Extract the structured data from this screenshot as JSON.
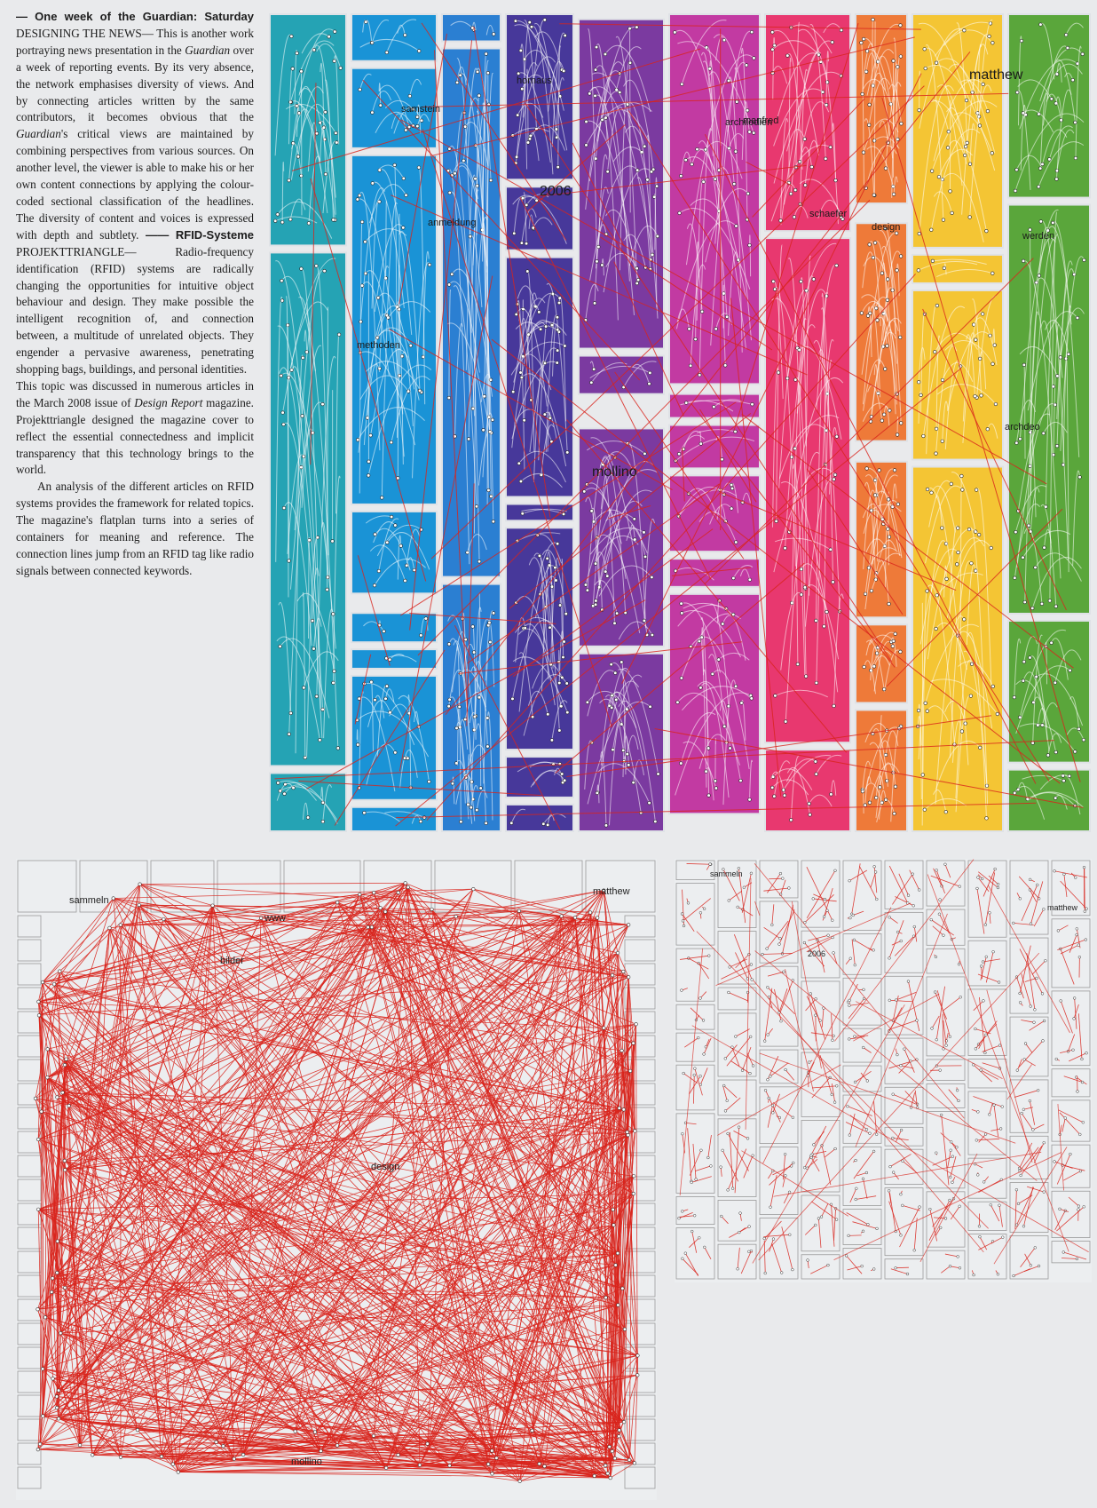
{
  "article": {
    "guardian": {
      "lead": "— One week of the Guardian: Saturday",
      "title": "DESIGNING THE NEWS",
      "body_1": "— This is another work portraying news presentation in the ",
      "body_em": "Guardian",
      "body_2": " over a week of reporting events. By its very absence, the network emphasises diversity of views. And by connecting articles written by the same contributors, it becomes obvious that the ",
      "body_em_2": "Guardian",
      "body_3": "'s critical views are maintained by combining perspectives from various sources. On another level, the viewer is able to make his or her own content connections by applying the colour-coded sectional classification of the headlines. The diversity of content and voices is expressed with depth and subtlety."
    },
    "rfid": {
      "dash": "——",
      "lead": "RFID-Systeme",
      "title": "PROJEKTTRIANGLE",
      "body_1": "— Radio-frequency identification (RFID) systems are radically changing the opportunities for intuitive object behaviour and design. They make possible the intelligent recognition of, and connection between, a multitude of unrelated objects. They engender a pervasive awareness, penetrating shopping bags, buildings, and personal identities.",
      "body_2a": "This topic was discussed in numerous articles in the March 2008 issue of ",
      "body_2em": "Design Report",
      "body_2b": " magazine. Projekttriangle designed the magazine cover to reflect the essential connectedness and implicit transparency that this technology brings to the world.",
      "body_3": "An analysis of the different articles on RFID systems provides the framework for related topics. The magazine's flatplan turns into a series of containers for meaning and reference. The connection lines jump from an RFID tag like radio signals between connected keywords."
    }
  },
  "figures": {
    "colour_flatplan": {
      "column_colors": [
        "#25a3b4",
        "#1a93d6",
        "#2b7fd2",
        "#47389a",
        "#7b3aa0",
        "#c23aa2",
        "#e8386f",
        "#ee7a39",
        "#f4c534",
        "#5aa63b"
      ],
      "keywords": [
        "samstein",
        "methoden",
        "archilodien",
        "hornaus",
        "2006",
        "mollino",
        "manfred",
        "matthew",
        "design",
        "werden",
        "anmeldung",
        "schaefer",
        "archdeo"
      ]
    },
    "red_network": {
      "line_color": "#d9241c",
      "keywords": [
        "sammeln",
        "www",
        "mollino",
        "matthew",
        "bilder",
        "design"
      ]
    },
    "grid_network": {
      "line_color": "#d9241c",
      "keywords": [
        "sammeln",
        "2006",
        "matthew"
      ]
    }
  }
}
